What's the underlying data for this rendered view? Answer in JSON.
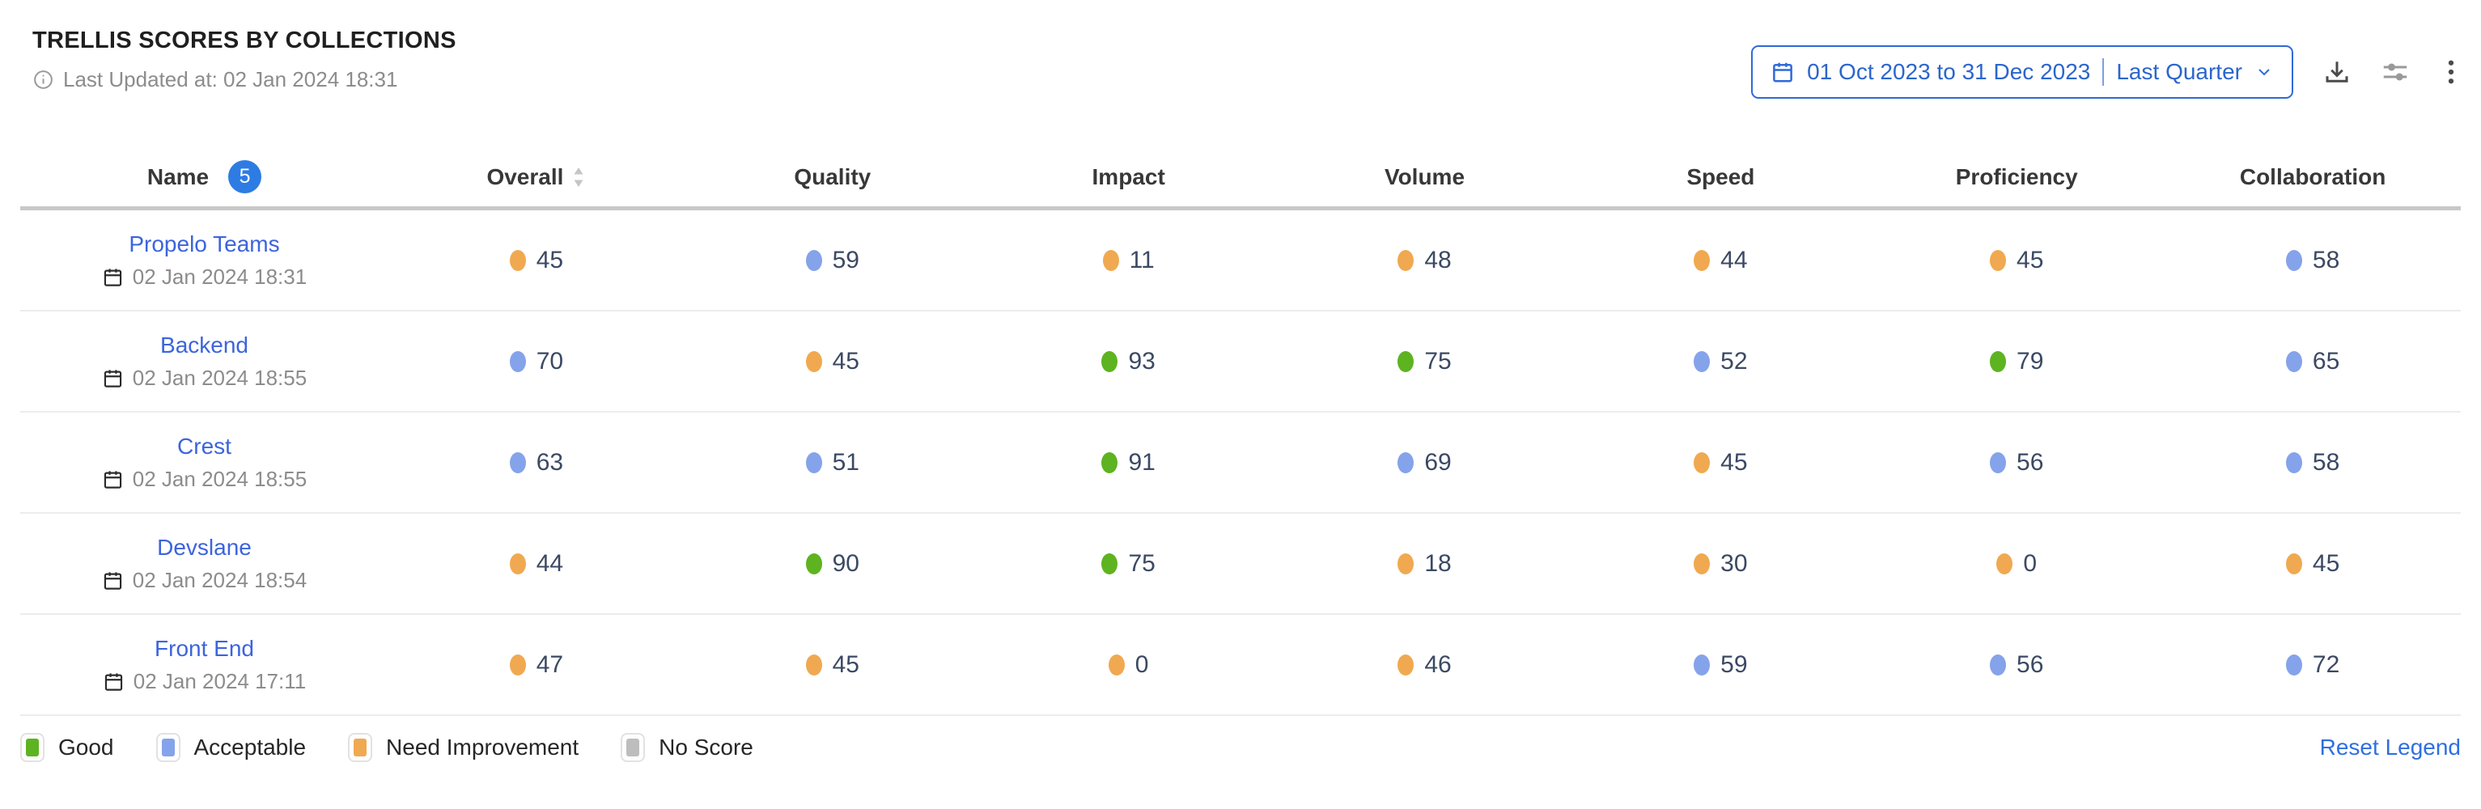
{
  "header": {
    "title": "TRELLIS SCORES BY COLLECTIONS",
    "last_updated": "Last Updated at: 02 Jan 2024 18:31"
  },
  "toolbar": {
    "date_range": "01 Oct 2023 to 31 Dec 2023",
    "preset": "Last Quarter"
  },
  "table": {
    "name_header": "Name",
    "count_badge": "5",
    "columns": [
      "Overall",
      "Quality",
      "Impact",
      "Volume",
      "Speed",
      "Proficiency",
      "Collaboration"
    ],
    "rows": [
      {
        "name": "Propelo Teams",
        "date": "02 Jan 2024 18:31",
        "scores": [
          {
            "value": 45,
            "status": "need_improvement"
          },
          {
            "value": 59,
            "status": "acceptable"
          },
          {
            "value": 11,
            "status": "need_improvement"
          },
          {
            "value": 48,
            "status": "need_improvement"
          },
          {
            "value": 44,
            "status": "need_improvement"
          },
          {
            "value": 45,
            "status": "need_improvement"
          },
          {
            "value": 58,
            "status": "acceptable"
          }
        ]
      },
      {
        "name": "Backend",
        "date": "02 Jan 2024 18:55",
        "scores": [
          {
            "value": 70,
            "status": "acceptable"
          },
          {
            "value": 45,
            "status": "need_improvement"
          },
          {
            "value": 93,
            "status": "good"
          },
          {
            "value": 75,
            "status": "good"
          },
          {
            "value": 52,
            "status": "acceptable"
          },
          {
            "value": 79,
            "status": "good"
          },
          {
            "value": 65,
            "status": "acceptable"
          }
        ]
      },
      {
        "name": "Crest",
        "date": "02 Jan 2024 18:55",
        "scores": [
          {
            "value": 63,
            "status": "acceptable"
          },
          {
            "value": 51,
            "status": "acceptable"
          },
          {
            "value": 91,
            "status": "good"
          },
          {
            "value": 69,
            "status": "acceptable"
          },
          {
            "value": 45,
            "status": "need_improvement"
          },
          {
            "value": 56,
            "status": "acceptable"
          },
          {
            "value": 58,
            "status": "acceptable"
          }
        ]
      },
      {
        "name": "Devslane",
        "date": "02 Jan 2024 18:54",
        "scores": [
          {
            "value": 44,
            "status": "need_improvement"
          },
          {
            "value": 90,
            "status": "good"
          },
          {
            "value": 75,
            "status": "good"
          },
          {
            "value": 18,
            "status": "need_improvement"
          },
          {
            "value": 30,
            "status": "need_improvement"
          },
          {
            "value": 0,
            "status": "need_improvement"
          },
          {
            "value": 45,
            "status": "need_improvement"
          }
        ]
      },
      {
        "name": "Front End",
        "date": "02 Jan 2024 17:11",
        "scores": [
          {
            "value": 47,
            "status": "need_improvement"
          },
          {
            "value": 45,
            "status": "need_improvement"
          },
          {
            "value": 0,
            "status": "need_improvement"
          },
          {
            "value": 46,
            "status": "need_improvement"
          },
          {
            "value": 59,
            "status": "acceptable"
          },
          {
            "value": 56,
            "status": "acceptable"
          },
          {
            "value": 72,
            "status": "acceptable"
          }
        ]
      }
    ]
  },
  "legend": {
    "items": [
      {
        "label": "Good",
        "status": "good"
      },
      {
        "label": "Acceptable",
        "status": "acceptable"
      },
      {
        "label": "Need Improvement",
        "status": "need_improvement"
      },
      {
        "label": "No Score",
        "status": "no_score"
      }
    ],
    "reset_label": "Reset Legend"
  },
  "status_colors": {
    "good": "#5eb321",
    "acceptable": "#85a3ea",
    "need_improvement": "#f0a951",
    "no_score": "#bdbdbd"
  },
  "accent_colors": {
    "primary_blue": "#2f6ad9",
    "badge_blue": "#2d7ce4",
    "link_blue": "#3c64dd"
  }
}
